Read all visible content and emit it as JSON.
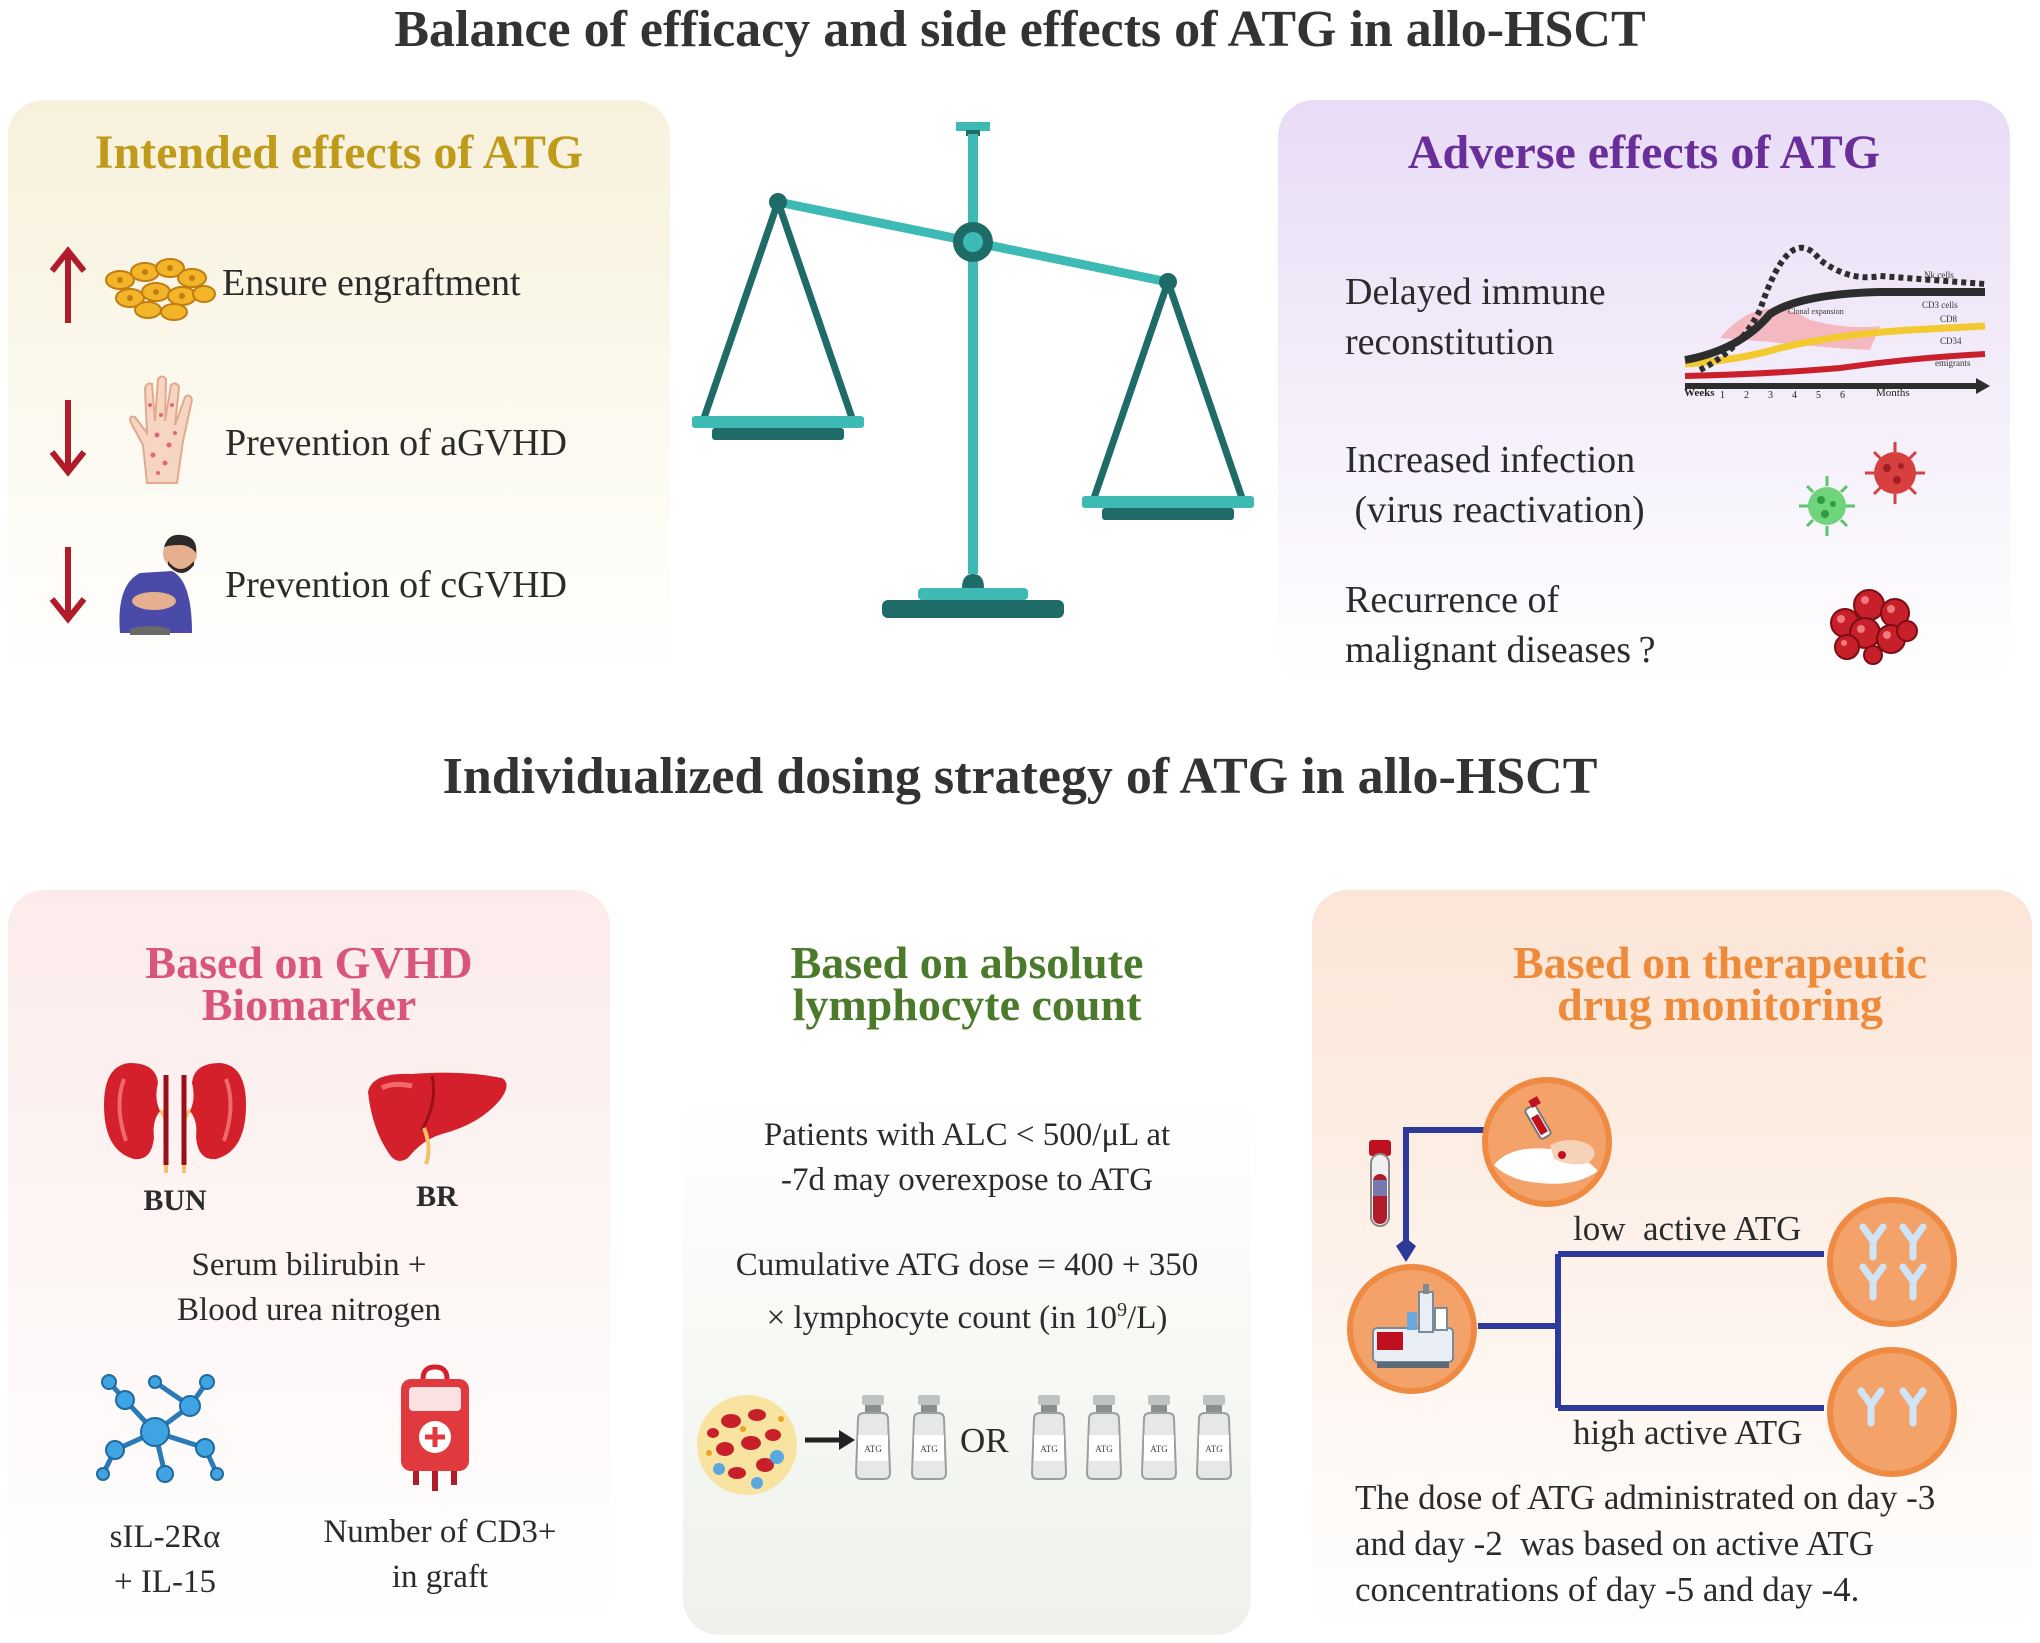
{
  "titles": {
    "top": "Balance of efficacy and side effects of ATG in allo-HSCT",
    "middle": "Individualized dosing strategy of ATG in allo-HSCT"
  },
  "intended": {
    "heading": "Intended effects of ATG",
    "items": [
      "Ensure engraftment",
      "Prevention of aGVHD",
      "Prevention of cGVHD"
    ]
  },
  "adverse": {
    "heading": "Adverse effects of ATG",
    "items": [
      {
        "line1": "Delayed immune",
        "line2": "reconstitution"
      },
      {
        "line1": "Increased infection",
        "line2": " (virus reactivation)"
      },
      {
        "line1": "Recurrence of",
        "line2": "malignant diseases ?"
      }
    ],
    "graph": {
      "labels": [
        "Nk cells",
        "CD3 cells",
        "CD8",
        "CD34",
        "emigrants",
        "Clonal expansion"
      ],
      "axis_start": "Weeks",
      "axis_ticks": [
        "1",
        "2",
        "3",
        "4",
        "5",
        "6"
      ],
      "axis_end": "Months"
    }
  },
  "gvhd": {
    "heading_line1": "Based on GVHD",
    "heading_line2": "Biomarker",
    "organ_labels": [
      "BUN",
      "BR"
    ],
    "text_line1": "Serum bilirubin +",
    "text_line2": "Blood urea nitrogen",
    "bottom_left_line1": "sIL-2Rα",
    "bottom_left_line2": "+ IL-15",
    "bottom_right_line1": "Number of CD3+",
    "bottom_right_line2": "in graft"
  },
  "alc": {
    "heading_line1": "Based on absolute",
    "heading_line2": "lymphocyte count",
    "text1_line1": "Patients with ALC < 500/μL at",
    "text1_line2": "-7d may overexpose to ATG",
    "text2_line1": "Cumulative ATG dose = 400 + 350",
    "text2_line2a": "× lymphocyte count (in 10",
    "text2_sup": "9",
    "text2_line2b": "/L)",
    "vial_label": "ATG",
    "or_label": "OR"
  },
  "tdm": {
    "heading_line1": "Based on therapeutic",
    "heading_line2": "drug monitoring",
    "low_label": "low  active ATG",
    "high_label": "high active ATG",
    "text_line1": "The dose of ATG administrated on day -3",
    "text_line2": "and day -2  was based on active ATG",
    "text_line3": "concentrations of day -5 and day -4."
  },
  "colors": {
    "intended_heading": "#c09a1a",
    "adverse_heading": "#6a2e9a",
    "gvhd_heading": "#d9557e",
    "alc_heading": "#4a7a2a",
    "tdm_heading": "#ee8a3a",
    "arrow_red": "#b01c2a",
    "scale_teal": "#3dbab3",
    "scale_dark": "#1e6b67",
    "tdm_line": "#2e3a9a",
    "circle_orange": "#ef8a43"
  },
  "icons": [
    "up-arrow-icon",
    "down-arrow-icon",
    "cells-icon",
    "hand-rash-icon",
    "stomach-pain-person-icon",
    "balance-scale-icon",
    "virus-icon",
    "tumor-cells-icon",
    "kidney-icon",
    "liver-icon",
    "molecule-network-icon",
    "blood-bag-icon",
    "blood-cells-icon",
    "vial-icon",
    "blood-tube-icon",
    "blood-draw-icon",
    "analyzer-icon",
    "antibody-icon"
  ]
}
